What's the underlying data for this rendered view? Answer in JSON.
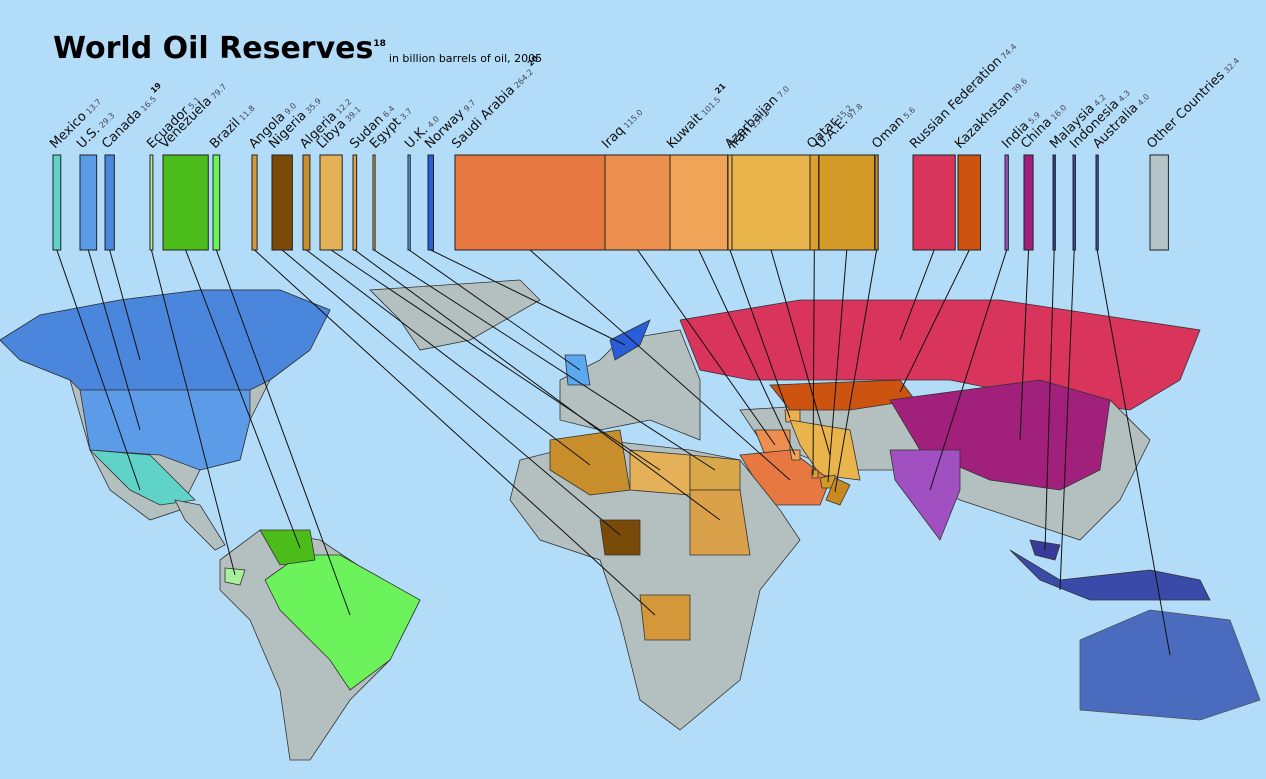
{
  "chart_data": {
    "type": "bar",
    "title": "World Oil Reserves",
    "title_footnote": "18",
    "subtitle": "in billion barrels of oil, 2005",
    "categories": [
      "Mexico",
      "U.S.",
      "Canada",
      "Ecuador",
      "Venezuela",
      "Brazil",
      "Angola",
      "Nigeria",
      "Algeria",
      "Libya",
      "Sudan",
      "Egypt",
      "U.K.",
      "Norway",
      "Saudi Arabia",
      "Iraq",
      "Kuwait",
      "Azerbaijan",
      "Iran",
      "Qatar",
      "U.A.E.",
      "Oman",
      "Russian Federation",
      "Kazakhstan",
      "India",
      "China",
      "Malaysia",
      "Indonesia",
      "Australia",
      "Other Countries"
    ],
    "values": [
      13.7,
      29.3,
      16.5,
      5.1,
      79.7,
      11.8,
      9.0,
      35.9,
      12.2,
      39.1,
      6.4,
      3.7,
      4.0,
      9.7,
      264.2,
      115.0,
      101.5,
      7.0,
      137.5,
      15.2,
      97.8,
      5.6,
      74.4,
      39.6,
      5.9,
      16.0,
      4.2,
      4.3,
      4.0,
      32.4
    ],
    "value_labels": [
      "13.7",
      "29.3",
      "16.5",
      "5.1",
      "79.7",
      "11.8",
      "9.0",
      "35.9",
      "12.2",
      "39.1",
      "6.4",
      "3.7",
      "4.0",
      "9.7",
      "264.2",
      "115.0",
      "101.5",
      "7.0",
      "137.5",
      "15.2",
      "97.8",
      "5.6",
      "74.4",
      "39.6",
      "5.9",
      "16.0",
      "4.2",
      "4.3",
      "4.0",
      "32.4"
    ],
    "value_footnotes": [
      null,
      null,
      "19",
      null,
      null,
      null,
      null,
      null,
      null,
      null,
      null,
      null,
      null,
      null,
      "20",
      null,
      "21",
      null,
      null,
      null,
      null,
      null,
      null,
      null,
      null,
      null,
      null,
      null,
      null,
      null
    ],
    "colors": [
      "#5fd3c8",
      "#5b9be8",
      "#4a86dc",
      "#a8f09a",
      "#4cbc1a",
      "#6cf25a",
      "#d4973a",
      "#7a4a08",
      "#c98e2c",
      "#e4b058",
      "#dba04a",
      "#d8a848",
      "#5aa8f0",
      "#2a5ed8",
      "#e87842",
      "#ec8e4e",
      "#f0a458",
      "#eeb050",
      "#eab44c",
      "#dca030",
      "#d49a28",
      "#c88a20",
      "#d8345c",
      "#cc5410",
      "#a050c0",
      "#a0207c",
      "#3a3a9a",
      "#3a4aa8",
      "#3050b0",
      "#b4c4c8"
    ]
  }
}
